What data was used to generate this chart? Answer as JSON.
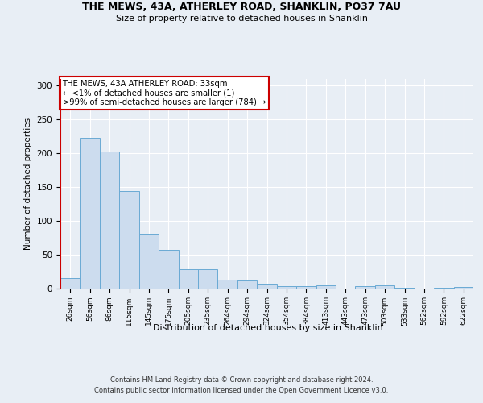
{
  "title": "THE MEWS, 43A, ATHERLEY ROAD, SHANKLIN, PO37 7AU",
  "subtitle": "Size of property relative to detached houses in Shanklin",
  "xlabel": "Distribution of detached houses by size in Shanklin",
  "ylabel": "Number of detached properties",
  "categories": [
    "26sqm",
    "56sqm",
    "86sqm",
    "115sqm",
    "145sqm",
    "175sqm",
    "205sqm",
    "235sqm",
    "264sqm",
    "294sqm",
    "324sqm",
    "354sqm",
    "384sqm",
    "413sqm",
    "443sqm",
    "473sqm",
    "503sqm",
    "533sqm",
    "562sqm",
    "592sqm",
    "622sqm"
  ],
  "values": [
    15,
    222,
    202,
    144,
    81,
    57,
    28,
    28,
    13,
    11,
    7,
    3,
    3,
    4,
    0,
    3,
    4,
    1,
    0,
    1,
    2
  ],
  "bar_color": "#ccdcee",
  "bar_edge_color": "#6aaad4",
  "marker_color": "#cc0000",
  "ylim": [
    0,
    310
  ],
  "yticks": [
    0,
    50,
    100,
    150,
    200,
    250,
    300
  ],
  "annotation_lines": [
    "THE MEWS, 43A ATHERLEY ROAD: 33sqm",
    "← <1% of detached houses are smaller (1)",
    ">99% of semi-detached houses are larger (784) →"
  ],
  "footnote1": "Contains HM Land Registry data © Crown copyright and database right 2024.",
  "footnote2": "Contains public sector information licensed under the Open Government Licence v3.0.",
  "bg_color": "#e8eef5",
  "plot_bg_color": "#e8eef5"
}
